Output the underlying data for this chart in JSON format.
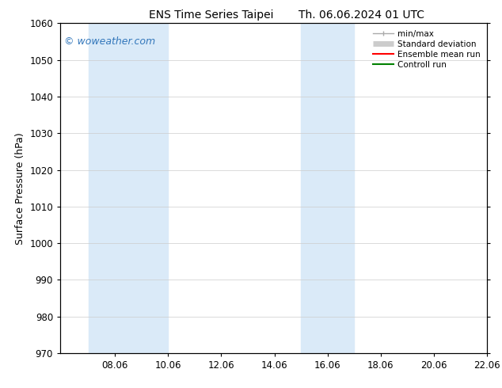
{
  "title_left": "ENS Time Series Taipei",
  "title_right": "Th. 06.06.2024 01 UTC",
  "ylabel": "Surface Pressure (hPa)",
  "ylim": [
    970,
    1060
  ],
  "yticks": [
    970,
    980,
    990,
    1000,
    1010,
    1020,
    1030,
    1040,
    1050,
    1060
  ],
  "xlim": [
    6.0,
    22.06
  ],
  "xticks": [
    8.06,
    10.06,
    12.06,
    14.06,
    16.06,
    18.06,
    20.06,
    22.06
  ],
  "xticklabels": [
    "08.06",
    "10.06",
    "12.06",
    "14.06",
    "16.06",
    "18.06",
    "20.06",
    "22.06"
  ],
  "background_color": "#ffffff",
  "plot_bg_color": "#ffffff",
  "shaded_bands": [
    {
      "x_start": 7.06,
      "x_end": 10.06,
      "color": "#daeaf8"
    },
    {
      "x_start": 15.06,
      "x_end": 17.06,
      "color": "#daeaf8"
    }
  ],
  "watermark_text": "© woweather.com",
  "watermark_color": "#3377bb",
  "legend_entries": [
    {
      "label": "min/max",
      "color": "#aaaaaa",
      "lw": 1.0
    },
    {
      "label": "Standard deviation",
      "color": "#cccccc",
      "lw": 5
    },
    {
      "label": "Ensemble mean run",
      "color": "#ff0000",
      "lw": 1.5
    },
    {
      "label": "Controll run",
      "color": "#008000",
      "lw": 1.5
    }
  ],
  "title_fontsize": 10,
  "tick_fontsize": 8.5,
  "label_fontsize": 9,
  "watermark_fontsize": 9
}
